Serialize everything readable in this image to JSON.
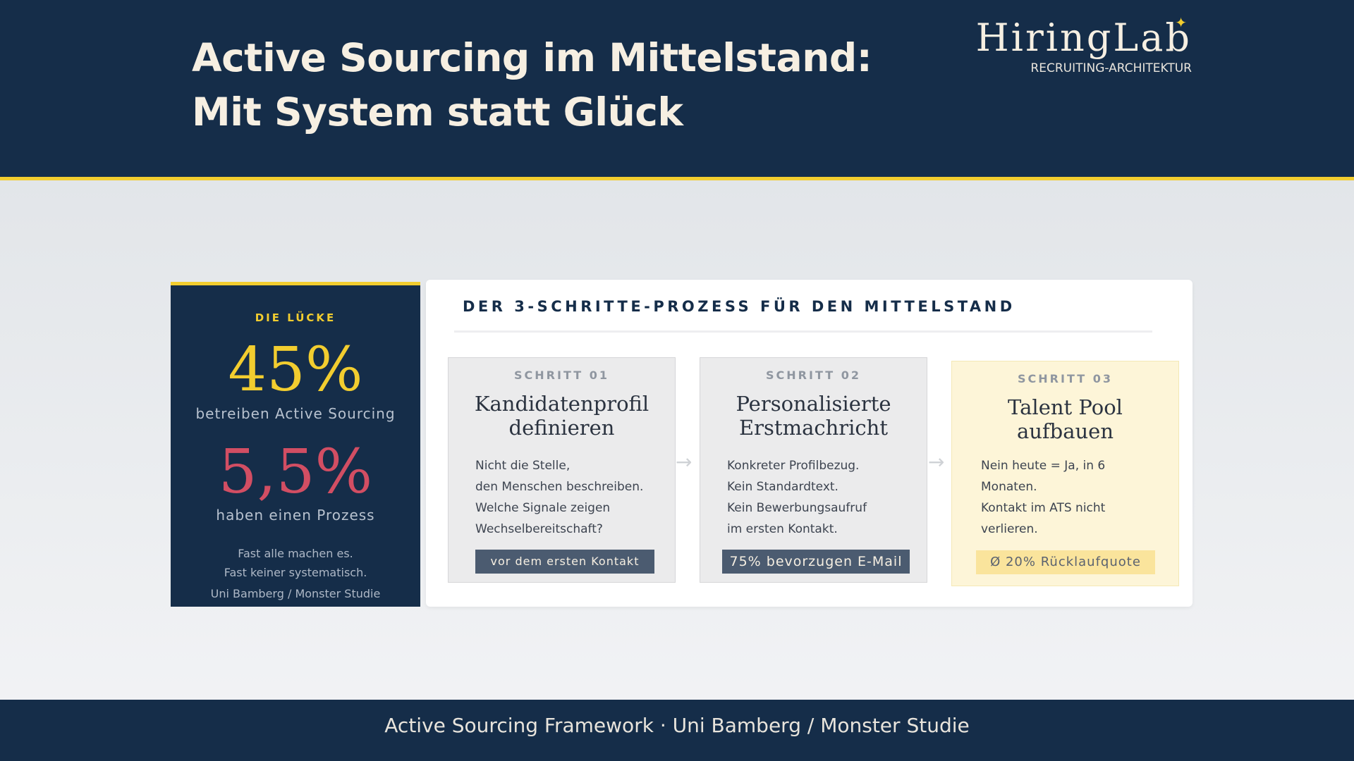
{
  "header": {
    "title_line1": "Active Sourcing im Mittelstand:",
    "title_line2": "Mit System statt Glück",
    "logo_name": "HiringLab",
    "logo_tagline": "RECRUITING-ARCHITEKTUR"
  },
  "gap_card": {
    "label": "DIE LÜCKE",
    "stat1_value": "45%",
    "stat1_caption": "betreiben Active Sourcing",
    "stat2_value": "5,5%",
    "stat2_caption": "haben einen Prozess",
    "note_line1": "Fast alle machen es.",
    "note_line2": "Fast keiner systematisch.",
    "source": "Uni Bamberg / Monster Studie"
  },
  "process": {
    "title": "DER 3-SCHRITTE-PROZESS FÜR DEN MITTELSTAND",
    "steps": [
      {
        "number": "SCHRITT 01",
        "title_line1": "Kandidatenprofil",
        "title_line2": "definieren",
        "body": [
          "Nicht die Stelle,",
          "den Menschen beschreiben.",
          "Welche Signale zeigen",
          "Wechselbereitschaft?"
        ],
        "tag": "vor dem ersten Kontakt"
      },
      {
        "number": "SCHRITT 02",
        "title_line1": "Personalisierte",
        "title_line2": "Erstmachricht",
        "body": [
          "Konkreter Profilbezug.",
          "Kein Standardtext.",
          "Kein Bewerbungsaufruf",
          "im ersten Kontakt."
        ],
        "tag": "75% bevorzugen E-Mail"
      },
      {
        "number": "SCHRITT 03",
        "title_line1": "Talent Pool",
        "title_line2": "aufbauen",
        "body": [
          "Nein heute = Ja,  in 6",
          "Monaten.",
          "Kontakt im ATS nicht",
          "verlieren."
        ],
        "tag": "Ø 20% Rücklaufquote"
      }
    ]
  },
  "footer": {
    "text": "Active Sourcing Framework · Uni Bamberg / Monster Studie"
  },
  "colors": {
    "navy": "#152d49",
    "accent_yellow": "#f2cd2f",
    "stat_red": "#d24e63",
    "highlight_bg": "#fdf5d8"
  },
  "icons": {
    "step_connector": "arrow-right-icon",
    "logo_mark": "hiring-lab-mark-icon"
  }
}
